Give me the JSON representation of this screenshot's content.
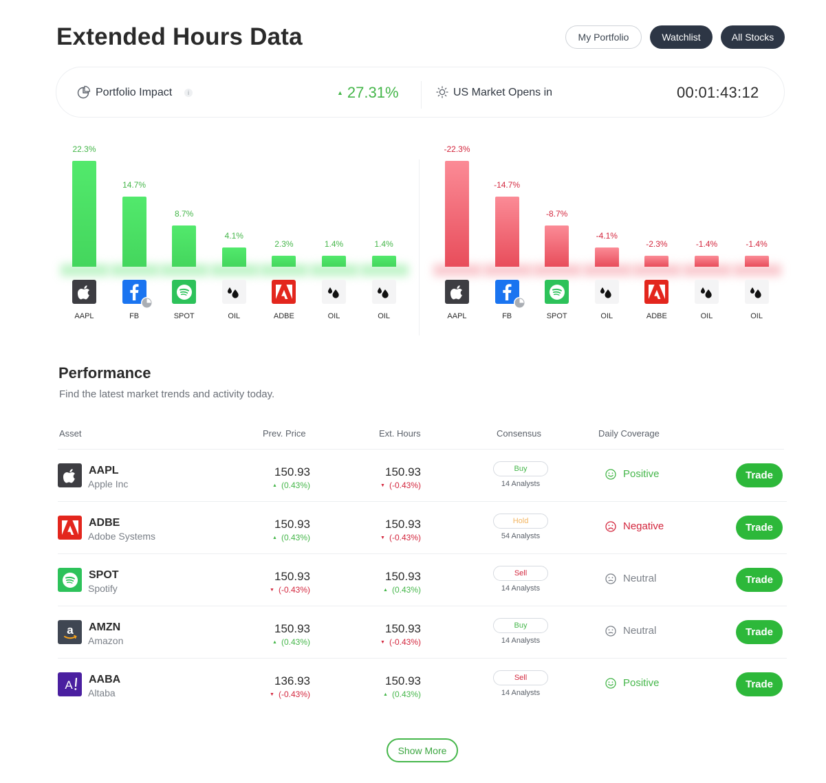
{
  "page": {
    "title": "Extended Hours Data"
  },
  "top_nav": {
    "my_portfolio": "My Portfolio",
    "watchlist": "Watchlist",
    "all_stocks": "All Stocks"
  },
  "impact": {
    "portfolio_label": "Portfolio Impact",
    "info_glyph": "i",
    "portfolio_value": "27.31%",
    "portfolio_direction": "up",
    "market_label": "US Market Opens in",
    "countdown": "00:01:43:12"
  },
  "chart_data": [
    {
      "type": "bar",
      "categories": [
        "AAPL",
        "FB",
        "SPOT",
        "OIL",
        "ADBE",
        "OIL",
        "OIL"
      ],
      "values": [
        22.3,
        14.7,
        8.7,
        4.1,
        2.3,
        1.4,
        1.4
      ],
      "labels": [
        "22.3%",
        "14.7%",
        "8.7%",
        "4.1%",
        "2.3%",
        "1.4%",
        "1.4%"
      ],
      "icons": [
        "apple",
        "facebook",
        "spotify",
        "oil",
        "adobe",
        "oil",
        "oil"
      ],
      "color": "#4ce065",
      "label_color": "#44b649"
    },
    {
      "type": "bar",
      "categories": [
        "AAPL",
        "FB",
        "SPOT",
        "OIL",
        "ADBE",
        "OIL",
        "OIL"
      ],
      "values": [
        -22.3,
        -14.7,
        -8.7,
        -4.1,
        -2.3,
        -1.4,
        -1.4
      ],
      "labels": [
        "-22.3%",
        "-14.7%",
        "-8.7%",
        "-4.1%",
        "-2.3%",
        "-1.4%",
        "-1.4%"
      ],
      "icons": [
        "apple",
        "facebook",
        "spotify",
        "oil",
        "adobe",
        "oil",
        "oil"
      ],
      "color": "#f26b78",
      "label_color": "#d3263d"
    }
  ],
  "performance": {
    "title": "Performance",
    "subtitle": "Find the latest market trends and activity today.",
    "columns": {
      "asset": "Asset",
      "prev_price": "Prev. Price",
      "ext_hours": "Ext. Hours",
      "consensus": "Consensus",
      "daily_coverage": "Daily Coverage"
    },
    "rows": [
      {
        "logo": "apple",
        "ticker": "AAPL",
        "company": "Apple Inc",
        "prev_price": "150.93",
        "prev_change": "(0.43%)",
        "prev_dir": "up",
        "ext_price": "150.93",
        "ext_change": "(-0.43%)",
        "ext_dir": "down",
        "consensus": "Buy",
        "analysts": "14 Analysts",
        "coverage": "Positive",
        "trade": "Trade"
      },
      {
        "logo": "adobe",
        "ticker": "ADBE",
        "company": "Adobe Systems",
        "prev_price": "150.93",
        "prev_change": "(0.43%)",
        "prev_dir": "up",
        "ext_price": "150.93",
        "ext_change": "(-0.43%)",
        "ext_dir": "down",
        "consensus": "Hold",
        "analysts": "54 Analysts",
        "coverage": "Negative",
        "trade": "Trade"
      },
      {
        "logo": "spotify",
        "ticker": "SPOT",
        "company": "Spotify",
        "prev_price": "150.93",
        "prev_change": "(-0.43%)",
        "prev_dir": "down",
        "ext_price": "150.93",
        "ext_change": "(0.43%)",
        "ext_dir": "up",
        "consensus": "Sell",
        "analysts": "14 Analysts",
        "coverage": "Neutral",
        "trade": "Trade"
      },
      {
        "logo": "amazon",
        "ticker": "AMZN",
        "company": "Amazon",
        "prev_price": "150.93",
        "prev_change": "(0.43%)",
        "prev_dir": "up",
        "ext_price": "150.93",
        "ext_change": "(-0.43%)",
        "ext_dir": "down",
        "consensus": "Buy",
        "analysts": "14 Analysts",
        "coverage": "Neutral",
        "trade": "Trade"
      },
      {
        "logo": "altaba",
        "ticker": "AABA",
        "company": "Altaba",
        "prev_price": "136.93",
        "prev_change": "(-0.43%)",
        "prev_dir": "down",
        "ext_price": "150.93",
        "ext_change": "(0.43%)",
        "ext_dir": "up",
        "consensus": "Sell",
        "analysts": "14 Analysts",
        "coverage": "Positive",
        "trade": "Trade"
      }
    ],
    "show_more": "Show More"
  },
  "colors": {
    "positive": "#44b649",
    "negative": "#d3263d",
    "neutral": "#7b8088",
    "buy": "#44b649",
    "hold": "#f3b560",
    "sell": "#d3263d",
    "trade_button": "#2db83a",
    "dark_button": "#2d3645",
    "logo_apple": "#3d3d42",
    "logo_adobe": "#e3261d",
    "logo_spotify": "#2dc25a",
    "logo_amazon": "#3f4652",
    "logo_altaba": "#4a1fa0",
    "logo_facebook": "#1a74f0"
  }
}
